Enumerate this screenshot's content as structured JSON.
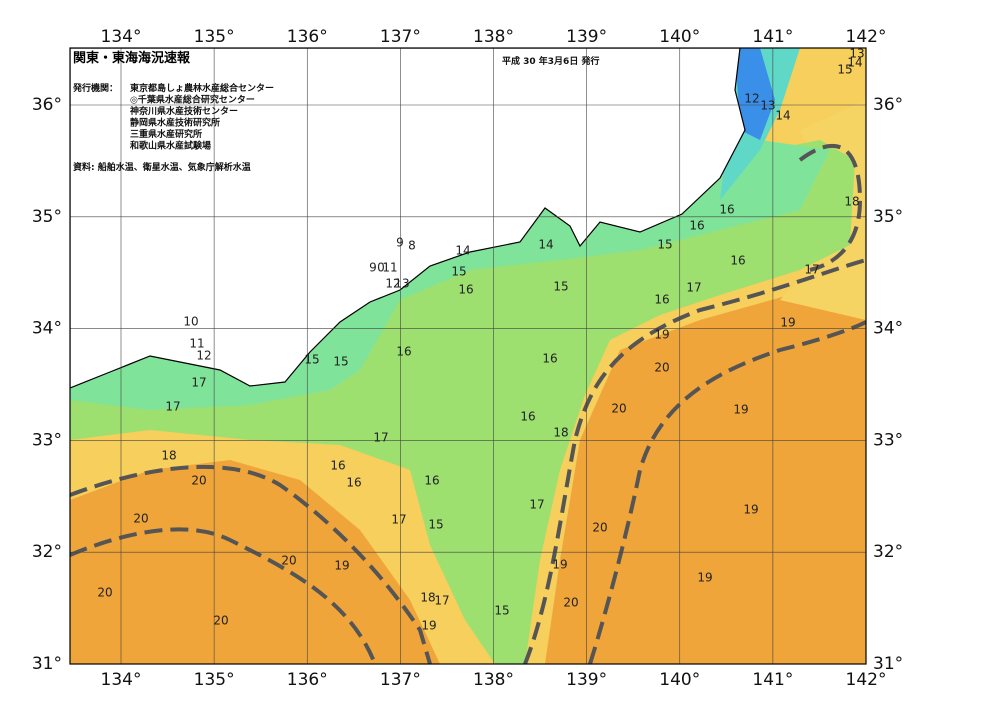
{
  "header": {
    "title": "関東・東海海況速報",
    "date": "平成 30 年3月6日 発行",
    "issuer_label": "発行機関：",
    "issuers": [
      "東京都島しょ農林水産総合センター",
      "◎千葉県水産総合研究センター",
      "神奈川県水産技術センター",
      "静岡県水産技術研究所",
      "三重県水産研究所",
      "和歌山県水産試験場"
    ],
    "data_note": "資料: 船舶水温、衛星水温、気象庁解析水温"
  },
  "map": {
    "lon_ticks": [
      {
        "value": 134,
        "label": "134°"
      },
      {
        "value": 135,
        "label": "135°"
      },
      {
        "value": 136,
        "label": "136°"
      },
      {
        "value": 137,
        "label": "137°"
      },
      {
        "value": 138,
        "label": "138°"
      },
      {
        "value": 139,
        "label": "139°"
      },
      {
        "value": 140,
        "label": "140°"
      },
      {
        "value": 141,
        "label": "141°"
      },
      {
        "value": 142,
        "label": "142°"
      }
    ],
    "lat_ticks": [
      {
        "value": 31,
        "label": "31°"
      },
      {
        "value": 32,
        "label": "32°"
      },
      {
        "value": 33,
        "label": "33°"
      },
      {
        "value": 34,
        "label": "34°"
      },
      {
        "value": 35,
        "label": "35°"
      },
      {
        "value": 36,
        "label": "36°"
      }
    ],
    "contour_labels": [
      13,
      14,
      15,
      12,
      13,
      14,
      18,
      16,
      16,
      15,
      16,
      17,
      17,
      16,
      19,
      19,
      20,
      20,
      19,
      18,
      16,
      16,
      15,
      14,
      14,
      15,
      16,
      16,
      15,
      15,
      10,
      11,
      12,
      17,
      17,
      18,
      17,
      16,
      16,
      16,
      17,
      15,
      17,
      20,
      20,
      20,
      19,
      20,
      20,
      18,
      17,
      19,
      15,
      19,
      20,
      20,
      19,
      19,
      9,
      8,
      9,
      0,
      11,
      12,
      13
    ]
  }
}
